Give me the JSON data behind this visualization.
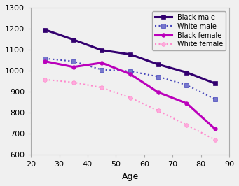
{
  "title": "",
  "xlabel": "Age",
  "ylabel": "",
  "xlim": [
    20,
    90
  ],
  "ylim": [
    600,
    1300
  ],
  "xticks": [
    20,
    30,
    40,
    50,
    60,
    70,
    80,
    90
  ],
  "yticks": [
    600,
    700,
    800,
    900,
    1000,
    1100,
    1200,
    1300
  ],
  "series": [
    {
      "label": "Black male",
      "x": [
        25,
        35,
        45,
        55,
        65,
        75,
        85
      ],
      "y": [
        1195,
        1148,
        1098,
        1078,
        1030,
        992,
        940
      ],
      "color": "#33006F",
      "linestyle": "-",
      "marker": "s",
      "markersize": 4,
      "linewidth": 2.2,
      "markerfacecolor": "#33006F",
      "markeredgecolor": "#33006F"
    },
    {
      "label": "White male",
      "x": [
        25,
        35,
        45,
        55,
        65,
        75,
        85
      ],
      "y": [
        1058,
        1045,
        1005,
        998,
        972,
        932,
        865
      ],
      "color": "#4444BB",
      "linestyle": ":",
      "marker": "s",
      "markersize": 4,
      "linewidth": 1.5,
      "markerfacecolor": "#7777CC",
      "markeredgecolor": "#4444BB"
    },
    {
      "label": "Black female",
      "x": [
        25,
        35,
        45,
        55,
        65,
        75,
        85
      ],
      "y": [
        1045,
        1018,
        1038,
        985,
        897,
        845,
        723
      ],
      "color": "#BB00BB",
      "linestyle": "-",
      "marker": "o",
      "markersize": 4,
      "linewidth": 2.2,
      "markerfacecolor": "#BB00BB",
      "markeredgecolor": "#BB00BB"
    },
    {
      "label": "White female",
      "x": [
        25,
        35,
        45,
        55,
        65,
        75,
        85
      ],
      "y": [
        958,
        945,
        920,
        872,
        810,
        742,
        672
      ],
      "color": "#FF88CC",
      "linestyle": ":",
      "marker": "o",
      "markersize": 4,
      "linewidth": 1.5,
      "markerfacecolor": "#FFAADD",
      "markeredgecolor": "#FF88CC"
    }
  ],
  "legend_loc": "upper right",
  "background_color": "#f0f0f0",
  "axes_facecolor": "#f0f0f0",
  "legend_fontsize": 7,
  "tick_fontsize": 8,
  "xlabel_fontsize": 9
}
